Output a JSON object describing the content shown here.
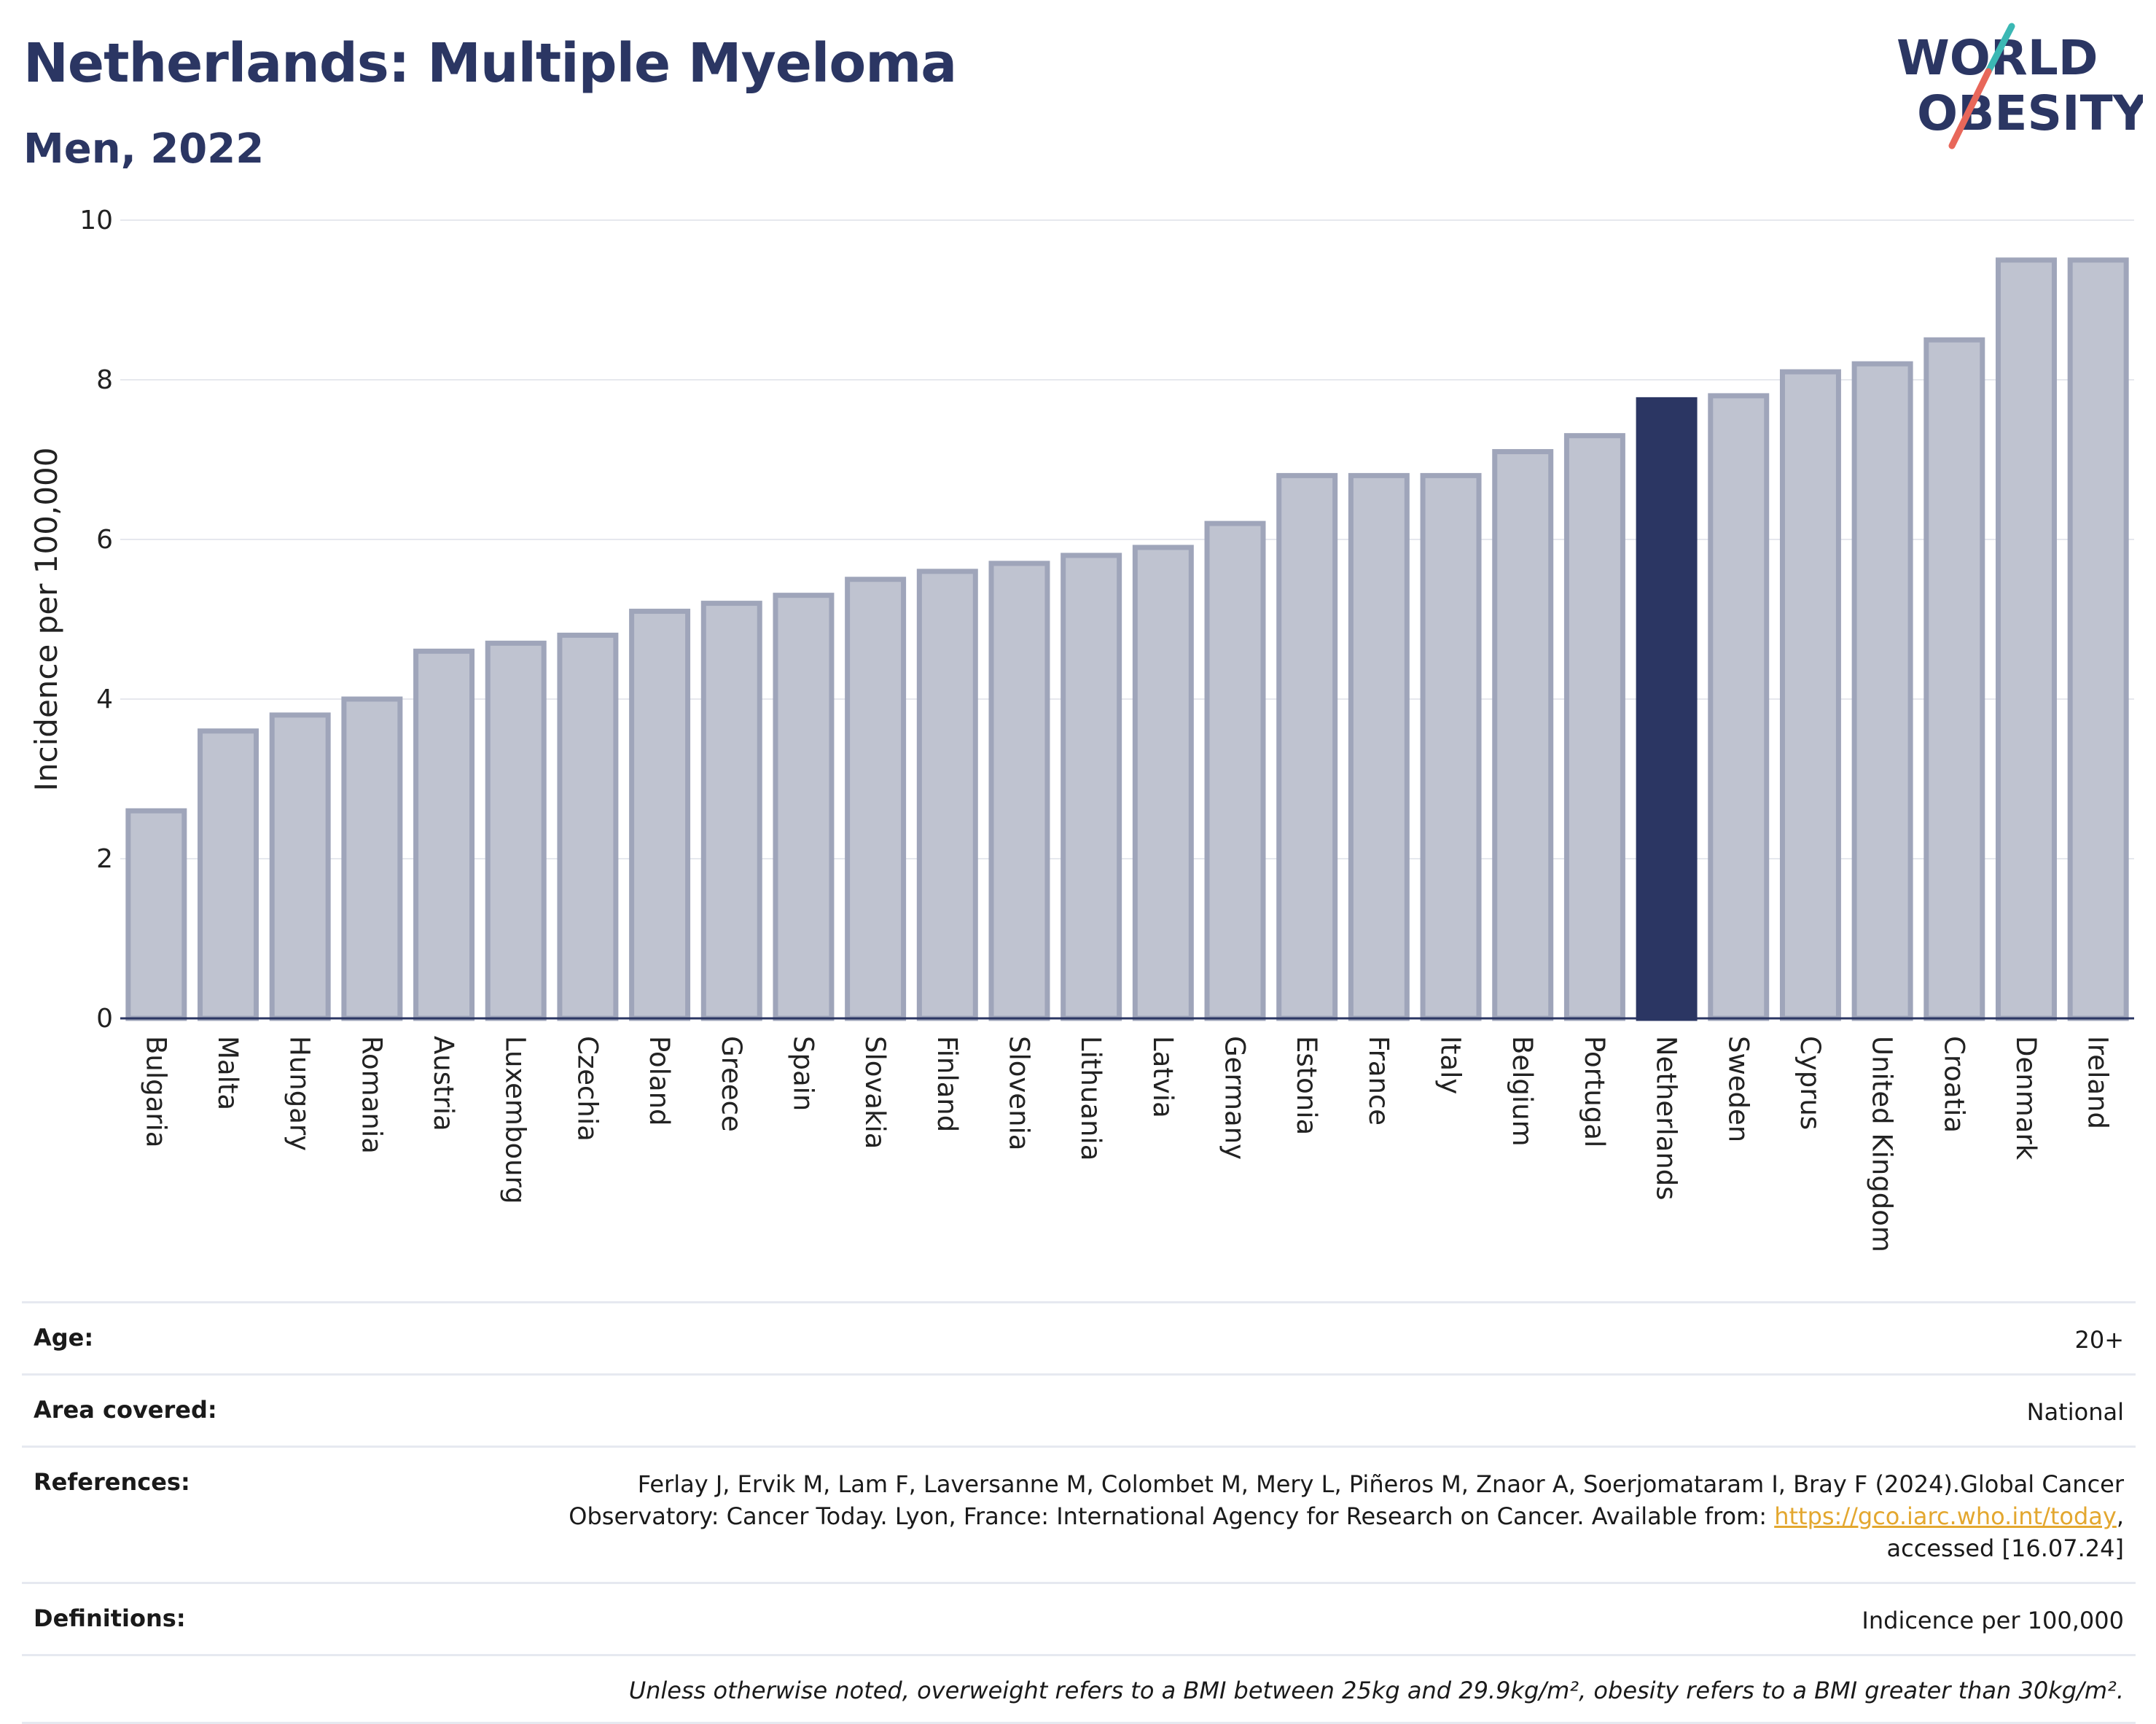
{
  "header": {
    "title": "Netherlands: Multiple Myeloma",
    "subtitle": "Men, 2022"
  },
  "logo": {
    "line1": "WORLD",
    "line2": "OBESITY",
    "text_color": "#2b3663",
    "slash_colors": [
      "#3bb8b4",
      "#e8675a"
    ]
  },
  "colors": {
    "bar_default": "#bfc3d0",
    "bar_border": "#9fa5ba",
    "bar_highlight": "#2b3663",
    "grid": "#e6e8ee",
    "axis": "#2b3663"
  },
  "chart_data": {
    "type": "bar",
    "ylabel": "Incidence per 100,000",
    "ylim": [
      0,
      10
    ],
    "yticks": [
      0,
      2,
      4,
      6,
      8,
      10
    ],
    "grid": true,
    "highlight": "Netherlands",
    "categories": [
      "Bulgaria",
      "Malta",
      "Hungary",
      "Romania",
      "Austria",
      "Luxembourg",
      "Czechia",
      "Poland",
      "Greece",
      "Spain",
      "Slovakia",
      "Finland",
      "Slovenia",
      "Lithuania",
      "Latvia",
      "Germany",
      "Estonia",
      "France",
      "Italy",
      "Belgium",
      "Portugal",
      "Netherlands",
      "Sweden",
      "Cyprus",
      "United Kingdom",
      "Croatia",
      "Denmark",
      "Ireland"
    ],
    "values": [
      2.6,
      3.6,
      3.8,
      4.0,
      4.6,
      4.7,
      4.8,
      5.1,
      5.2,
      5.3,
      5.5,
      5.6,
      5.7,
      5.8,
      5.9,
      6.2,
      6.8,
      6.8,
      6.8,
      7.1,
      7.3,
      7.75,
      7.8,
      8.1,
      8.2,
      8.5,
      9.5,
      9.5
    ]
  },
  "info": {
    "age_label": "Age:",
    "age_value": "20+",
    "area_label": "Area covered:",
    "area_value": "National",
    "references_label": "References:",
    "references_line1": "Ferlay J, Ervik M, Lam F, Laversanne M, Colombet M, Mery L, Piñeros M, Znaor A, Soerjomataram I, Bray F (2024).Global Cancer",
    "references_line2": "Observatory: Cancer Today. Lyon, France: International Agency for Research on Cancer. Available from: ",
    "references_link": "https://gco.iarc.who.int/today",
    "references_line3_suffix": ",",
    "references_line3": "accessed [16.07.24]",
    "definitions_label": "Definitions:",
    "definitions_value": "Indicence per 100,000",
    "note": "Unless otherwise noted, overweight refers to a BMI between 25kg and 29.9kg/m², obesity refers to a BMI greater than 30kg/m²."
  }
}
